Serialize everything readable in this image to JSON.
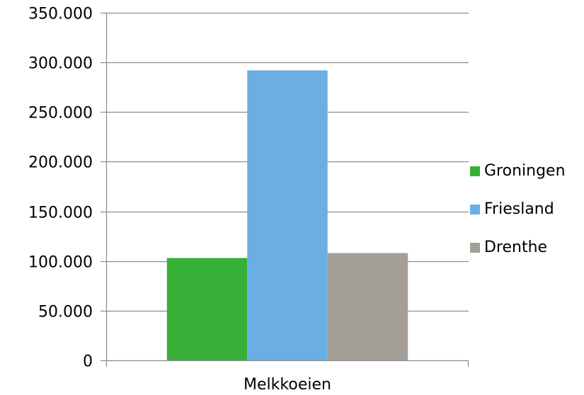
{
  "chart_data": {
    "type": "bar",
    "categories": [
      "Melkkoeien"
    ],
    "series": [
      {
        "name": "Groningen",
        "values": [
          103000
        ],
        "color": "#36b036"
      },
      {
        "name": "Friesland",
        "values": [
          292000
        ],
        "color": "#6aaee3"
      },
      {
        "name": "Drenthe",
        "values": [
          108000
        ],
        "color": "#a49e98"
      }
    ],
    "ylim": [
      0,
      350000
    ],
    "yticks": [
      0,
      50000,
      100000,
      150000,
      200000,
      250000,
      300000,
      350000
    ],
    "ytick_labels": [
      "0",
      "50.000",
      "100.000",
      "150.000",
      "200.000",
      "250.000",
      "300.000",
      "350.000"
    ],
    "grid": true,
    "legend_position": "right"
  }
}
